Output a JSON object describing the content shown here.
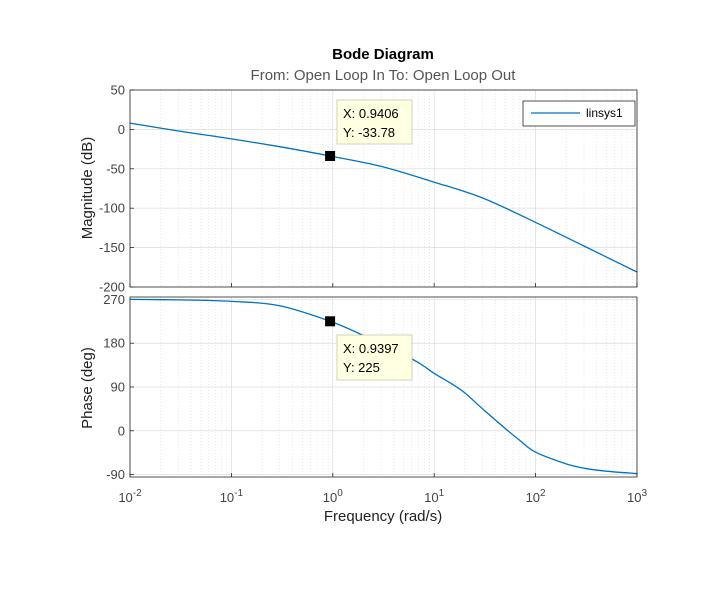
{
  "chart_data": {
    "type": "line",
    "title": "Bode Diagram",
    "subtitle": "From: Open Loop In  To: Open Loop Out",
    "xlabel": "Frequency  (rad/s)",
    "x_scale": "log",
    "xlim": [
      0.01,
      1000
    ],
    "x_ticks": [
      {
        "value": 0.01,
        "base": "10",
        "exp": "-2"
      },
      {
        "value": 0.1,
        "base": "10",
        "exp": "-1"
      },
      {
        "value": 1,
        "base": "10",
        "exp": "0"
      },
      {
        "value": 10,
        "base": "10",
        "exp": "1"
      },
      {
        "value": 100,
        "base": "10",
        "exp": "2"
      },
      {
        "value": 1000,
        "base": "10",
        "exp": "3"
      }
    ],
    "grid": true,
    "legend_position": "top-right",
    "line_color": "#0072BD",
    "panels": [
      {
        "name": "magnitude",
        "ylabel": "Magnitude (dB)",
        "ylim": [
          -200,
          50
        ],
        "y_ticks": [
          "50",
          "0",
          "-50",
          "-100",
          "-150",
          "-200"
        ],
        "y_tick_values": [
          50,
          0,
          -50,
          -100,
          -150,
          -200
        ],
        "series": [
          {
            "name": "linsys1",
            "x": [
              0.01,
              0.03,
              0.1,
              0.3,
              0.94,
              3,
              10,
              30,
              100,
              300,
              1000
            ],
            "y": [
              8,
              -2,
              -12,
              -22,
              -33.78,
              -47,
              -67,
              -87,
              -118,
              -148,
              -181
            ]
          }
        ],
        "datatip": {
          "x": 0.9406,
          "y": -33.78,
          "x_text": "X: 0.9406",
          "y_text": "Y: -33.78"
        }
      },
      {
        "name": "phase",
        "ylabel": "Phase (deg)",
        "ylim": [
          -95,
          275
        ],
        "y_ticks": [
          "270",
          "180",
          "90",
          "0",
          "-90"
        ],
        "y_tick_values": [
          270,
          180,
          90,
          0,
          -90
        ],
        "series": [
          {
            "name": "linsys1",
            "x": [
              0.01,
              0.03,
              0.1,
              0.3,
              0.94,
              2,
              4,
              7,
              10,
              15,
              20,
              30,
              50,
              70,
              100,
              200,
              300,
              500,
              1000
            ],
            "y": [
              270,
              269,
              266,
              257,
              225,
              196,
              167,
              140,
              118,
              96,
              78,
              45,
              5,
              -20,
              -44,
              -68,
              -77,
              -83,
              -88
            ]
          }
        ],
        "datatip": {
          "x": 0.9397,
          "y": 225,
          "x_text": "X: 0.9397",
          "y_text": "Y: 225"
        }
      }
    ]
  }
}
